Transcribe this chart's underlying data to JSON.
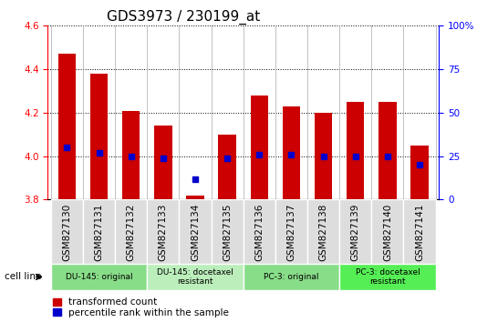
{
  "title": "GDS3973 / 230199_at",
  "samples": [
    "GSM827130",
    "GSM827131",
    "GSM827132",
    "GSM827133",
    "GSM827134",
    "GSM827135",
    "GSM827136",
    "GSM827137",
    "GSM827138",
    "GSM827139",
    "GSM827140",
    "GSM827141"
  ],
  "bar_values": [
    4.47,
    4.38,
    4.21,
    4.14,
    3.82,
    4.1,
    4.28,
    4.23,
    4.2,
    4.25,
    4.25,
    4.05
  ],
  "bar_base": 3.8,
  "percentile_values": [
    30,
    27,
    25,
    24,
    12,
    24,
    26,
    26,
    25,
    25,
    25,
    20
  ],
  "ylim_left": [
    3.8,
    4.6
  ],
  "ylim_right": [
    0,
    100
  ],
  "yticks_left": [
    3.8,
    4.0,
    4.2,
    4.4,
    4.6
  ],
  "yticks_right": [
    0,
    25,
    50,
    75,
    100
  ],
  "bar_color": "#cc0000",
  "dot_color": "#0000cc",
  "background_color": "#ffffff",
  "plot_bg_color": "#ffffff",
  "cell_line_groups": [
    {
      "label": "DU-145: original",
      "start": 0,
      "end": 3,
      "color": "#88dd88"
    },
    {
      "label": "DU-145: docetaxel\nresistant",
      "start": 3,
      "end": 6,
      "color": "#bbeebb"
    },
    {
      "label": "PC-3: original",
      "start": 6,
      "end": 9,
      "color": "#88dd88"
    },
    {
      "label": "PC-3: docetaxel\nresistant",
      "start": 9,
      "end": 12,
      "color": "#55ee55"
    }
  ],
  "legend_bar_label": "transformed count",
  "legend_dot_label": "percentile rank within the sample",
  "cell_line_label": "cell line",
  "title_fontsize": 11,
  "tick_fontsize": 7.5,
  "label_fontsize": 8
}
